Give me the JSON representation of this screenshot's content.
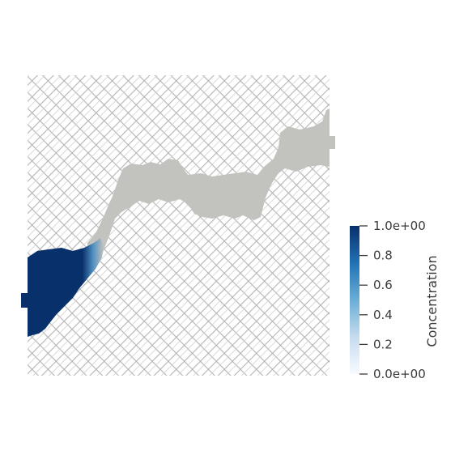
{
  "colorbar": {
    "title": "Concentration",
    "tick_labels": [
      "1.0e+00",
      "0.8",
      "0.6",
      "0.4",
      "0.2",
      "0.0e+00"
    ],
    "tick_values": [
      1.0,
      0.8,
      0.6,
      0.4,
      0.2,
      0.0
    ],
    "range": [
      0.0,
      1.0
    ],
    "colormap": {
      "low_color": "#f7fbff",
      "mid_color": "#6aaed6",
      "high_color": "#08306b"
    }
  },
  "scene": {
    "background_color": "#ffffff",
    "mesh_line_color": "#b4b4b4",
    "fracture_fill_color": "#c2c3bf",
    "plume_color": "#08306b"
  }
}
